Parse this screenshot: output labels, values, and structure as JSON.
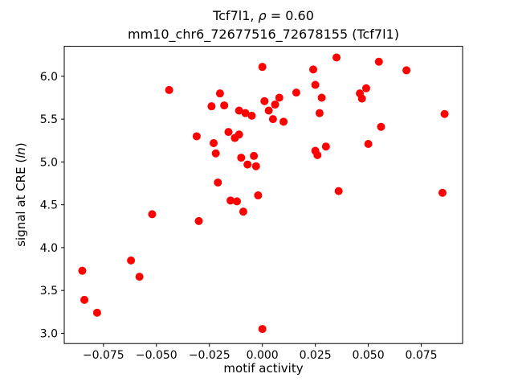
{
  "title": {
    "line1_pre": "Tcf7l1, ",
    "line1_rho": "ρ",
    "line1_post": " = 0.60",
    "line2": "mm10_chr6_72677516_72678155 (Tcf7l1)"
  },
  "axes": {
    "xlabel": "motif activity",
    "ylabel_pre": "signal at CRE (",
    "ylabel_italic": "ln",
    "ylabel_post": ")"
  },
  "chart_data": {
    "type": "scatter",
    "title": "Tcf7l1, ρ = 0.60",
    "subtitle": "mm10_chr6_72677516_72678155 (Tcf7l1)",
    "xlabel": "motif activity",
    "ylabel": "signal at CRE (ln)",
    "marker_color": "#ff0000",
    "marker_radius": 5,
    "grid": false,
    "xlim": [
      -0.0935,
      0.0945
    ],
    "ylim": [
      2.88,
      6.35
    ],
    "x_ticks": [
      {
        "v": -0.075,
        "label": "−0.075"
      },
      {
        "v": -0.05,
        "label": "−0.050"
      },
      {
        "v": -0.025,
        "label": "−0.025"
      },
      {
        "v": 0.0,
        "label": "0.000"
      },
      {
        "v": 0.025,
        "label": "0.025"
      },
      {
        "v": 0.05,
        "label": "0.050"
      },
      {
        "v": 0.075,
        "label": "0.075"
      }
    ],
    "y_ticks": [
      {
        "v": 3.0,
        "label": "3.0"
      },
      {
        "v": 3.5,
        "label": "3.5"
      },
      {
        "v": 4.0,
        "label": "4.0"
      },
      {
        "v": 4.5,
        "label": "4.5"
      },
      {
        "v": 5.0,
        "label": "5.0"
      },
      {
        "v": 5.5,
        "label": "5.5"
      },
      {
        "v": 6.0,
        "label": "6.0"
      }
    ],
    "points": [
      [
        -0.085,
        3.73
      ],
      [
        -0.084,
        3.39
      ],
      [
        -0.078,
        3.24
      ],
      [
        -0.062,
        3.85
      ],
      [
        -0.058,
        3.66
      ],
      [
        -0.052,
        4.39
      ],
      [
        -0.044,
        5.84
      ],
      [
        -0.031,
        5.3
      ],
      [
        -0.03,
        4.31
      ],
      [
        -0.024,
        5.65
      ],
      [
        -0.023,
        5.22
      ],
      [
        -0.022,
        5.1
      ],
      [
        -0.021,
        4.76
      ],
      [
        -0.02,
        5.8
      ],
      [
        -0.018,
        5.66
      ],
      [
        -0.016,
        5.35
      ],
      [
        -0.015,
        4.55
      ],
      [
        -0.013,
        5.28
      ],
      [
        -0.012,
        4.54
      ],
      [
        -0.011,
        5.32
      ],
      [
        -0.011,
        5.6
      ],
      [
        -0.01,
        5.05
      ],
      [
        -0.009,
        4.42
      ],
      [
        -0.008,
        5.57
      ],
      [
        -0.007,
        4.97
      ],
      [
        -0.005,
        5.54
      ],
      [
        -0.004,
        5.07
      ],
      [
        -0.003,
        4.95
      ],
      [
        -0.002,
        4.61
      ],
      [
        0.0,
        6.11
      ],
      [
        0.0,
        3.05
      ],
      [
        0.001,
        5.71
      ],
      [
        0.003,
        5.6
      ],
      [
        0.005,
        5.5
      ],
      [
        0.006,
        5.67
      ],
      [
        0.008,
        5.75
      ],
      [
        0.01,
        5.47
      ],
      [
        0.016,
        5.81
      ],
      [
        0.024,
        6.08
      ],
      [
        0.025,
        5.9
      ],
      [
        0.025,
        5.13
      ],
      [
        0.026,
        5.08
      ],
      [
        0.027,
        5.57
      ],
      [
        0.028,
        5.75
      ],
      [
        0.03,
        5.18
      ],
      [
        0.035,
        6.22
      ],
      [
        0.036,
        4.66
      ],
      [
        0.046,
        5.8
      ],
      [
        0.047,
        5.74
      ],
      [
        0.049,
        5.86
      ],
      [
        0.05,
        5.21
      ],
      [
        0.055,
        6.17
      ],
      [
        0.056,
        5.41
      ],
      [
        0.068,
        6.07
      ],
      [
        0.085,
        4.64
      ],
      [
        0.086,
        5.56
      ]
    ]
  }
}
